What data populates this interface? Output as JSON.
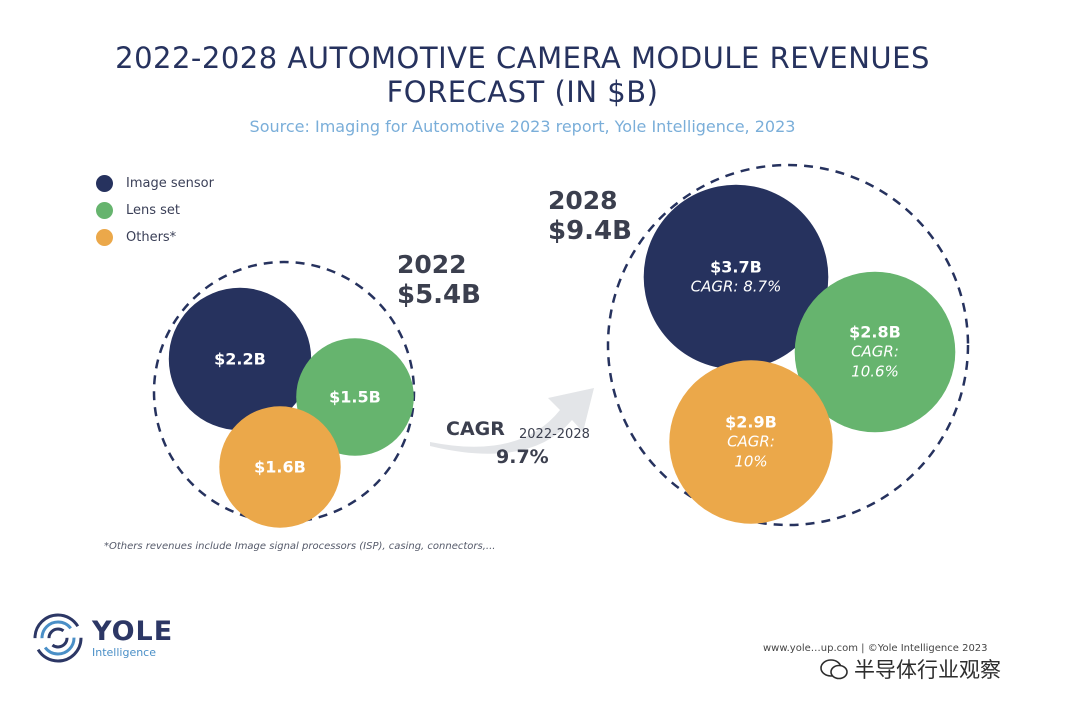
{
  "title_line1": "2022-2028 AUTOMOTIVE CAMERA MODULE REVENUES",
  "title_line2": "FORECAST (IN $B)",
  "source": "Source: Imaging for Automotive 2023 report, Yole Intelligence, 2023",
  "legend": [
    {
      "label": "Image sensor",
      "color": "#26325e"
    },
    {
      "label": "Lens set",
      "color": "#66b46e"
    },
    {
      "label": "Others*",
      "color": "#eba84a"
    }
  ],
  "y2022": {
    "year": "2022",
    "total": "$5.4B"
  },
  "y2028": {
    "year": "2028",
    "total": "$9.4B"
  },
  "cagr": {
    "label": "CAGR",
    "years": "2022-2028",
    "value": "9.7%"
  },
  "bubbles": {
    "s2022": {
      "value": "$2.2B"
    },
    "l2022": {
      "value": "$1.5B"
    },
    "o2022": {
      "value": "$1.6B"
    },
    "s2028": {
      "value": "$3.7B",
      "cagr": "CAGR: 8.7%"
    },
    "l2028": {
      "value": "$2.8B",
      "cagr_l1": "CAGR:",
      "cagr_l2": "10.6%"
    },
    "o2028": {
      "value": "$2.9B",
      "cagr_l1": "CAGR:",
      "cagr_l2": "10%"
    }
  },
  "footnote": "*Others revenues include Image signal processors (ISP), casing, connectors,...",
  "logo": {
    "name": "YOLE",
    "sub": "Intelligence"
  },
  "credits": "www.yole…up.com | ©Yole Intelligence 2023",
  "watermark": "半导体行业观察",
  "chart_data": {
    "type": "bubble",
    "title": "2022-2028 AUTOMOTIVE CAMERA MODULE REVENUES FORECAST (IN $B)",
    "categories": [
      "2022",
      "2028"
    ],
    "totals": [
      5.4,
      9.4
    ],
    "series": [
      {
        "name": "Image sensor",
        "values": [
          2.2,
          3.7
        ],
        "cagr": 8.7
      },
      {
        "name": "Lens set",
        "values": [
          1.5,
          2.8
        ],
        "cagr": 10.6
      },
      {
        "name": "Others*",
        "values": [
          1.6,
          2.9
        ],
        "cagr": 10
      }
    ],
    "overall_cagr": 9.7,
    "legend_position": "top-left"
  }
}
